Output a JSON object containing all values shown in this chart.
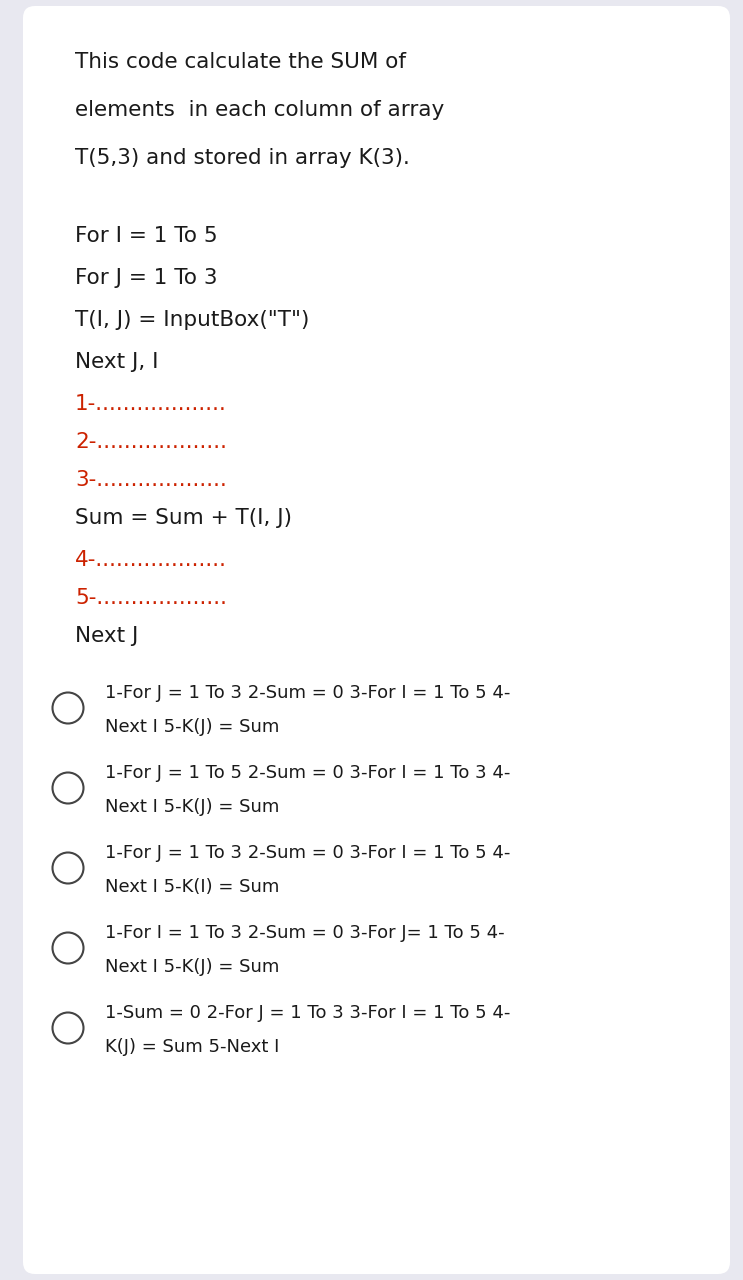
{
  "bg_color": "#e8e8f0",
  "card_color": "#ffffff",
  "title_text": "This code calculate the SUM of\nelements  in each column of array\nT(5,3) and stored in array K(3).",
  "code_lines": [
    {
      "text": "For I = 1 To 5",
      "color": "#1a1a1a"
    },
    {
      "text": "For J = 1 To 3",
      "color": "#1a1a1a"
    },
    {
      "text": "T(I, J) = InputBox(\"T\")",
      "color": "#1a1a1a"
    },
    {
      "text": "Next J, I",
      "color": "#1a1a1a"
    }
  ],
  "numbered_lines_top": [
    {
      "text": "1-...................",
      "color": "#cc2200"
    },
    {
      "text": "2-...................",
      "color": "#cc2200"
    },
    {
      "text": "3-...................",
      "color": "#cc2200"
    }
  ],
  "sum_line": {
    "text": "Sum = Sum + T(I, J)",
    "color": "#1a1a1a"
  },
  "numbered_lines_bottom": [
    {
      "text": "4-...................",
      "color": "#cc2200"
    },
    {
      "text": "5-...................",
      "color": "#cc2200"
    }
  ],
  "next_j": {
    "text": "Next J",
    "color": "#1a1a1a"
  },
  "options": [
    {
      "line1": "1-For J = 1 To 3 2-Sum = 0 3-For I = 1 To 5 4-",
      "line2": "Next I 5-K(J) = Sum"
    },
    {
      "line1": "1-For J = 1 To 5 2-Sum = 0 3-For I = 1 To 3 4-",
      "line2": "Next I 5-K(J) = Sum"
    },
    {
      "line1": "1-For J = 1 To 3 2-Sum = 0 3-For I = 1 To 5 4-",
      "line2": "Next I 5-K(I) = Sum"
    },
    {
      "line1": "1-For I = 1 To 3 2-Sum = 0 3-For J= 1 To 5 4-",
      "line2": "Next I 5-K(J) = Sum"
    },
    {
      "line1": "1-Sum = 0 2-For J = 1 To 3 3-For I = 1 To 5 4-",
      "line2": "K(J) = Sum 5-Next I"
    }
  ],
  "text_color": "#1a1a1a",
  "title_size": 15.5,
  "body_size": 15.5,
  "option_size": 13.0,
  "circle_color": "#444444",
  "circle_linewidth": 1.5
}
